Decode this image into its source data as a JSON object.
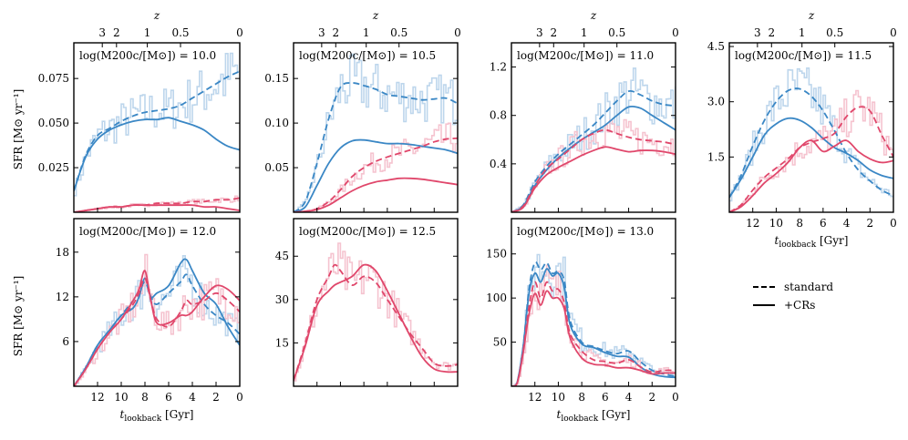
{
  "figure": {
    "top_axis_label": "z",
    "top_ticks": [
      "3",
      "2",
      "1",
      "0.5",
      "0"
    ],
    "top_tick_lookback": [
      11.6,
      10.4,
      7.8,
      5.0,
      0
    ],
    "y_label": "SFR [M⊙ yr⁻¹]",
    "x_label_text": "t",
    "x_label_sub": "lookback",
    "x_label_unit": " [Gyr]",
    "x_ticks": [
      "12",
      "10",
      "8",
      "6",
      "4",
      "2",
      "0"
    ],
    "legend": [
      {
        "label": "standard",
        "style": "dashed"
      },
      {
        "label": "+CRs",
        "style": "solid"
      }
    ],
    "colors": {
      "blue": "#3a87c5",
      "red": "#e0476b",
      "blue_light": "#bdd6ec",
      "red_light": "#f5c3cf"
    }
  },
  "chart_data": [
    {
      "type": "line",
      "title": "log(M200c/[M⊙]) = 10.0",
      "xlim": [
        14,
        0
      ],
      "ylim": [
        0,
        0.095
      ],
      "yticks": [
        "0.025",
        "0.050",
        "0.075"
      ],
      "ytick_values": [
        0.025,
        0.05,
        0.075
      ],
      "x": [
        14,
        13,
        12,
        11,
        10,
        9,
        8,
        7,
        6,
        5,
        4,
        3,
        2,
        1,
        0
      ],
      "series": [
        {
          "name": "blue standard",
          "values": [
            0.012,
            0.032,
            0.043,
            0.047,
            0.051,
            0.054,
            0.056,
            0.057,
            0.058,
            0.06,
            0.064,
            0.068,
            0.072,
            0.076,
            0.079
          ]
        },
        {
          "name": "blue +CRs",
          "values": [
            0.012,
            0.031,
            0.041,
            0.046,
            0.049,
            0.051,
            0.052,
            0.052,
            0.053,
            0.051,
            0.049,
            0.046,
            0.041,
            0.037,
            0.035
          ]
        },
        {
          "name": "red standard",
          "values": [
            0.0,
            0.001,
            0.002,
            0.003,
            0.003,
            0.004,
            0.004,
            0.005,
            0.005,
            0.005,
            0.006,
            0.006,
            0.007,
            0.007,
            0.008
          ]
        },
        {
          "name": "red +CRs",
          "values": [
            0.0,
            0.001,
            0.002,
            0.003,
            0.003,
            0.004,
            0.004,
            0.004,
            0.004,
            0.004,
            0.004,
            0.003,
            0.003,
            0.002,
            0.001
          ]
        }
      ]
    },
    {
      "type": "line",
      "title": "log(M200c/[M⊙]) = 10.5",
      "xlim": [
        14,
        0
      ],
      "ylim": [
        0,
        0.19
      ],
      "yticks": [
        "0.05",
        "0.10",
        "0.15"
      ],
      "ytick_values": [
        0.05,
        0.1,
        0.15
      ],
      "x": [
        14,
        13,
        12,
        11,
        10,
        9,
        8,
        7,
        6,
        5,
        4,
        3,
        2,
        1,
        0
      ],
      "series": [
        {
          "name": "blue standard",
          "values": [
            0.0,
            0.012,
            0.055,
            0.105,
            0.14,
            0.145,
            0.142,
            0.138,
            0.132,
            0.13,
            0.128,
            0.126,
            0.127,
            0.128,
            0.122
          ]
        },
        {
          "name": "blue +CRs",
          "values": [
            0.0,
            0.006,
            0.03,
            0.055,
            0.072,
            0.08,
            0.081,
            0.079,
            0.077,
            0.077,
            0.076,
            0.074,
            0.072,
            0.07,
            0.066
          ]
        },
        {
          "name": "red standard",
          "values": [
            0.0,
            0.001,
            0.004,
            0.012,
            0.025,
            0.04,
            0.05,
            0.057,
            0.062,
            0.066,
            0.07,
            0.074,
            0.079,
            0.082,
            0.083
          ]
        },
        {
          "name": "red +CRs",
          "values": [
            0.0,
            0.001,
            0.003,
            0.008,
            0.016,
            0.024,
            0.03,
            0.034,
            0.036,
            0.038,
            0.038,
            0.037,
            0.035,
            0.033,
            0.031
          ]
        }
      ]
    },
    {
      "type": "line",
      "title": "log(M200c/[M⊙]) = 11.0",
      "xlim": [
        14,
        0
      ],
      "ylim": [
        0,
        1.4
      ],
      "yticks": [
        "0.4",
        "0.8",
        "1.2"
      ],
      "ytick_values": [
        0.4,
        0.8,
        1.2
      ],
      "x": [
        14,
        13,
        12,
        11,
        10,
        9,
        8,
        7,
        6,
        5,
        4,
        3,
        2,
        1,
        0
      ],
      "series": [
        {
          "name": "blue standard",
          "values": [
            0.0,
            0.06,
            0.25,
            0.38,
            0.48,
            0.56,
            0.64,
            0.72,
            0.82,
            0.92,
            1.0,
            0.97,
            0.92,
            0.89,
            0.88
          ]
        },
        {
          "name": "blue +CRs",
          "values": [
            0.0,
            0.05,
            0.22,
            0.35,
            0.45,
            0.53,
            0.6,
            0.66,
            0.72,
            0.8,
            0.87,
            0.86,
            0.8,
            0.74,
            0.68
          ]
        },
        {
          "name": "red standard",
          "values": [
            0.0,
            0.05,
            0.22,
            0.36,
            0.44,
            0.52,
            0.6,
            0.65,
            0.68,
            0.65,
            0.62,
            0.6,
            0.59,
            0.58,
            0.56
          ]
        },
        {
          "name": "red +CRs",
          "values": [
            0.0,
            0.04,
            0.2,
            0.31,
            0.37,
            0.42,
            0.47,
            0.51,
            0.54,
            0.52,
            0.5,
            0.51,
            0.51,
            0.5,
            0.48
          ]
        }
      ]
    },
    {
      "type": "line",
      "title": "log(M200c/[M⊙]) = 11.5",
      "xlim": [
        14,
        0
      ],
      "ylim": [
        0,
        4.6
      ],
      "yticks": [
        "1.5",
        "3.0",
        "4.5"
      ],
      "ytick_values": [
        1.5,
        3.0,
        4.5
      ],
      "x": [
        14,
        13,
        12,
        11,
        10,
        9,
        8,
        7,
        6,
        5,
        4,
        3,
        2,
        1,
        0
      ],
      "series": [
        {
          "name": "blue standard",
          "values": [
            0.4,
            1.0,
            1.8,
            2.5,
            3.0,
            3.3,
            3.35,
            3.15,
            2.75,
            2.2,
            1.6,
            1.15,
            0.85,
            0.6,
            0.45
          ]
        },
        {
          "name": "blue +CRs",
          "values": [
            0.4,
            0.9,
            1.5,
            2.1,
            2.4,
            2.55,
            2.5,
            2.3,
            2.0,
            1.75,
            1.6,
            1.4,
            1.15,
            1.0,
            0.92
          ]
        },
        {
          "name": "red standard",
          "values": [
            0.0,
            0.2,
            0.6,
            0.95,
            1.2,
            1.45,
            1.75,
            1.9,
            2.0,
            2.15,
            2.6,
            2.85,
            2.75,
            2.1,
            1.5
          ]
        },
        {
          "name": "red +CRs",
          "values": [
            0.0,
            0.15,
            0.45,
            0.8,
            1.05,
            1.35,
            1.75,
            1.95,
            1.65,
            1.8,
            1.95,
            1.65,
            1.45,
            1.35,
            1.4
          ]
        }
      ]
    },
    {
      "type": "line",
      "title": "log(M200c/[M⊙]) = 12.0",
      "xlim": [
        14,
        0
      ],
      "ylim": [
        0,
        22.5
      ],
      "yticks": [
        "6",
        "12",
        "18"
      ],
      "ytick_values": [
        6,
        12,
        18
      ],
      "x": [
        14,
        13,
        12,
        11,
        10,
        9,
        8.5,
        8,
        7.5,
        7,
        6,
        5,
        4.5,
        4,
        3,
        2,
        1,
        0
      ],
      "series": [
        {
          "name": "blue standard",
          "values": [
            0.0,
            2.5,
            5.5,
            7.5,
            9.5,
            11.5,
            12.5,
            14.0,
            12.0,
            11.0,
            12.5,
            14.0,
            15.0,
            13.5,
            11.0,
            9.5,
            8.5,
            7.0
          ]
        },
        {
          "name": "blue +CRs",
          "values": [
            0.0,
            2.5,
            5.5,
            7.5,
            9.5,
            10.5,
            12.0,
            14.5,
            12.0,
            12.5,
            13.5,
            16.5,
            17.0,
            15.5,
            12.5,
            11.0,
            8.0,
            5.5
          ]
        },
        {
          "name": "red standard",
          "values": [
            0.0,
            2.3,
            5.0,
            7.2,
            9.0,
            11.0,
            12.5,
            14.5,
            11.5,
            9.0,
            8.0,
            10.0,
            11.5,
            11.0,
            11.5,
            12.5,
            11.5,
            10.0
          ]
        },
        {
          "name": "red +CRs",
          "values": [
            0.0,
            2.3,
            5.0,
            7.2,
            9.0,
            11.5,
            13.0,
            15.5,
            11.5,
            8.5,
            8.5,
            9.5,
            9.5,
            10.0,
            12.0,
            13.5,
            13.0,
            11.5
          ]
        }
      ]
    },
    {
      "type": "line",
      "title": "log(M200c/[M⊙]) = 12.5",
      "xlim": [
        14,
        0
      ],
      "ylim": [
        0,
        58
      ],
      "yticks": [
        "15",
        "30",
        "45"
      ],
      "ytick_values": [
        15,
        30,
        45
      ],
      "x": [
        14,
        13,
        12,
        11,
        10.5,
        10,
        9,
        8,
        7,
        6,
        5,
        4,
        3,
        2,
        1,
        0
      ],
      "series": [
        {
          "name": "red standard",
          "values": [
            2.0,
            15.0,
            30.0,
            38.0,
            42.0,
            40.0,
            35.0,
            38.0,
            36.0,
            30.0,
            24.0,
            18.0,
            13.0,
            8.0,
            7.0,
            7.5
          ]
        },
        {
          "name": "red +CRs",
          "values": [
            2.0,
            14.0,
            28.0,
            33.0,
            35.0,
            36.0,
            38.0,
            42.0,
            40.0,
            33.0,
            25.0,
            17.0,
            10.0,
            6.0,
            5.0,
            5.0
          ]
        }
      ]
    },
    {
      "type": "line",
      "title": "log(M200c/[M⊙]) = 13.0",
      "xlim": [
        14,
        0
      ],
      "ylim": [
        0,
        190
      ],
      "yticks": [
        "50",
        "100",
        "150"
      ],
      "ytick_values": [
        50,
        100,
        150
      ],
      "x": [
        14,
        13.5,
        13,
        12.5,
        12,
        11.5,
        11,
        10.5,
        10,
        9.5,
        9,
        8,
        7,
        6,
        5,
        4,
        3,
        2,
        1,
        0
      ],
      "series": [
        {
          "name": "blue standard",
          "values": [
            0.0,
            5.0,
            45.0,
            110.0,
            140.0,
            132.0,
            140.0,
            128.0,
            130.0,
            120.0,
            75.0,
            50.0,
            45.0,
            40.0,
            37.0,
            40.0,
            28.0,
            18.0,
            14.0,
            11.0
          ]
        },
        {
          "name": "blue +CRs",
          "values": [
            0.0,
            5.0,
            45.0,
            105.0,
            128.0,
            118.0,
            133.0,
            125.0,
            128.0,
            112.0,
            70.0,
            48.0,
            44.0,
            38.0,
            34.0,
            33.0,
            22.0,
            14.0,
            11.0,
            10.0
          ]
        },
        {
          "name": "red standard",
          "values": [
            0.0,
            4.0,
            40.0,
            90.0,
            118.0,
            100.0,
            118.0,
            108.0,
            110.0,
            95.0,
            60.0,
            40.0,
            30.0,
            28.0,
            26.0,
            30.0,
            22.0,
            16.0,
            18.0,
            18.0
          ]
        },
        {
          "name": "red +CRs",
          "values": [
            0.0,
            4.0,
            38.0,
            82.0,
            105.0,
            92.0,
            108.0,
            100.0,
            100.0,
            88.0,
            55.0,
            32.0,
            25.0,
            24.0,
            21.0,
            21.0,
            18.0,
            14.0,
            15.0,
            15.0
          ]
        }
      ]
    }
  ]
}
